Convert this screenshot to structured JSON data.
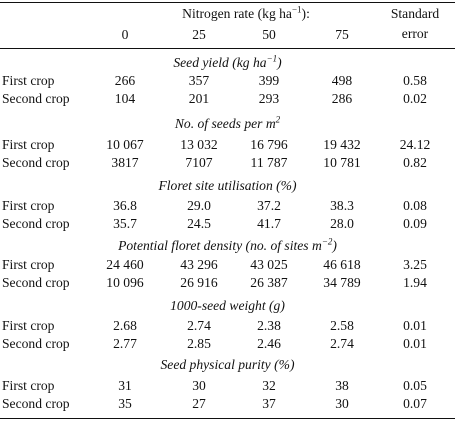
{
  "header": {
    "title": "Nitrogen rate (kg ha",
    "title_sup": "−1",
    "title_end": "):",
    "se_line1": "Standard",
    "se_line2": "error",
    "rates": [
      "0",
      "25",
      "50",
      "75"
    ]
  },
  "sections": [
    {
      "title": "Seed yield (kg ha",
      "title_sup": "−1",
      "title_end": ")",
      "rows": [
        {
          "label": "First crop",
          "values": [
            "266",
            "357",
            "399",
            "498"
          ],
          "se": "0.58"
        },
        {
          "label": "Second crop",
          "values": [
            "104",
            "201",
            "293",
            "286"
          ],
          "se": "0.02"
        }
      ]
    },
    {
      "title": "No. of seeds per m",
      "title_sup": "2",
      "title_end": "",
      "rows": [
        {
          "label": "First crop",
          "values": [
            "10 067",
            "13 032",
            "16 796",
            "19 432"
          ],
          "se": "24.12"
        },
        {
          "label": "Second crop",
          "values": [
            "3817",
            "7107",
            "11 787",
            "10 781"
          ],
          "se": "0.82"
        }
      ]
    },
    {
      "title": "Floret site utilisation (%)",
      "title_sup": "",
      "title_end": "",
      "rows": [
        {
          "label": "First crop",
          "values": [
            "36.8",
            "29.0",
            "37.2",
            "38.3"
          ],
          "se": "0.08"
        },
        {
          "label": "Second crop",
          "values": [
            "35.7",
            "24.5",
            "41.7",
            "28.0"
          ],
          "se": "0.09"
        }
      ]
    },
    {
      "title": "Potential floret density (no. of sites m",
      "title_sup": "−2",
      "title_end": ")",
      "rows": [
        {
          "label": "First crop",
          "values": [
            "24 460",
            "43 296",
            "43 025",
            "46 618"
          ],
          "se": "3.25"
        },
        {
          "label": "Second crop",
          "values": [
            "10 096",
            "26 916",
            "26 387",
            "34 789"
          ],
          "se": "1.94"
        }
      ]
    },
    {
      "title": "1000-seed weight (g)",
      "title_sup": "",
      "title_end": "",
      "rows": [
        {
          "label": "First crop",
          "values": [
            "2.68",
            "2.74",
            "2.38",
            "2.58"
          ],
          "se": "0.01"
        },
        {
          "label": "Second crop",
          "values": [
            "2.77",
            "2.85",
            "2.46",
            "2.74"
          ],
          "se": "0.01"
        }
      ]
    },
    {
      "title": "Seed physical purity (%)",
      "title_sup": "",
      "title_end": "",
      "rows": [
        {
          "label": "First crop",
          "values": [
            "31",
            "30",
            "32",
            "38"
          ],
          "se": "0.05"
        },
        {
          "label": "Second crop",
          "values": [
            "35",
            "27",
            "37",
            "30"
          ],
          "se": "0.07"
        }
      ]
    }
  ]
}
